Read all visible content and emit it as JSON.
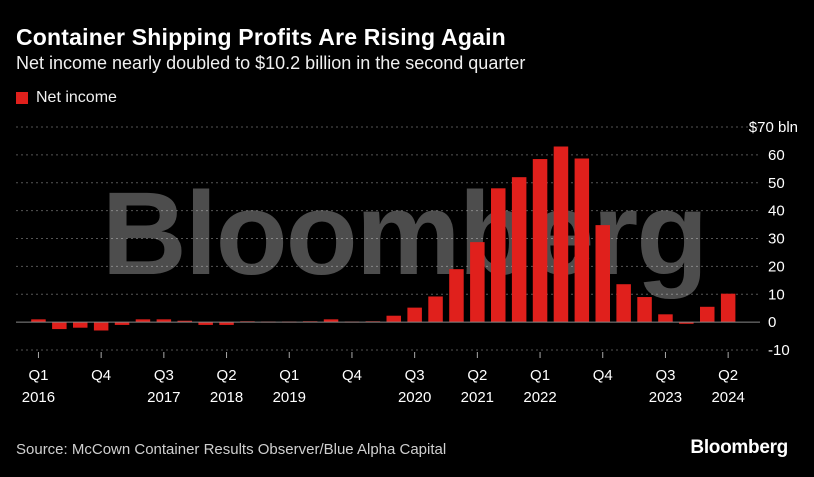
{
  "title": "Container Shipping Profits Are Rising Again",
  "subtitle": "Net income nearly doubled to $10.2 billion in the second quarter",
  "source": "Source: McCown Container Results Observer/Blue Alpha Capital",
  "brand": "Bloomberg",
  "watermark": "Bloomberg",
  "colors": {
    "bar": "#e0201c",
    "grid": "#555555",
    "zero_line": "#888888",
    "text": "#ffffff",
    "background": "#000000"
  },
  "chart_data": {
    "type": "bar",
    "series": [
      {
        "name": "Net income",
        "values": [
          1.0,
          -2.5,
          -2.0,
          -3.0,
          -1.0,
          1.0,
          1.0,
          0.5,
          -1.0,
          -1.0,
          0.3,
          0.2,
          0.2,
          0.3,
          1.0,
          0.2,
          0.3,
          2.3,
          5.2,
          9.2,
          19.0,
          28.7,
          48.0,
          52.0,
          58.5,
          63.0,
          58.7,
          34.8,
          13.6,
          9.0,
          2.8,
          -0.6,
          5.5,
          10.2
        ]
      }
    ],
    "categories": [
      "Q1 2016",
      "Q2 2016",
      "Q3 2016",
      "Q4 2016",
      "Q1 2017",
      "Q2 2017",
      "Q3 2017",
      "Q4 2017",
      "Q1 2018",
      "Q2 2018",
      "Q3 2018",
      "Q4 2018",
      "Q1 2019",
      "Q2 2019",
      "Q3 2019",
      "Q4 2019",
      "Q1 2020",
      "Q2 2020",
      "Q3 2020",
      "Q4 2020",
      "Q1 2021",
      "Q2 2021",
      "Q3 2021",
      "Q4 2021",
      "Q1 2022",
      "Q2 2022",
      "Q3 2022",
      "Q4 2022",
      "Q1 2023",
      "Q2 2023",
      "Q3 2023",
      "Q4 2023",
      "Q1 2024",
      "Q2 2024"
    ],
    "x_ticks": [
      {
        "index": 0,
        "quarter": "Q1",
        "year": "2016"
      },
      {
        "index": 3,
        "quarter": "Q4",
        "year": ""
      },
      {
        "index": 6,
        "quarter": "Q3",
        "year": "2017"
      },
      {
        "index": 9,
        "quarter": "Q2",
        "year": "2018"
      },
      {
        "index": 12,
        "quarter": "Q1",
        "year": "2019"
      },
      {
        "index": 15,
        "quarter": "Q4",
        "year": ""
      },
      {
        "index": 18,
        "quarter": "Q3",
        "year": "2020"
      },
      {
        "index": 21,
        "quarter": "Q2",
        "year": "2021"
      },
      {
        "index": 24,
        "quarter": "Q1",
        "year": "2022"
      },
      {
        "index": 27,
        "quarter": "Q4",
        "year": ""
      },
      {
        "index": 30,
        "quarter": "Q3",
        "year": "2023"
      },
      {
        "index": 33,
        "quarter": "Q2",
        "year": "2024"
      }
    ],
    "y_ticks": [
      {
        "value": 70,
        "label": "$70 bln"
      },
      {
        "value": 60,
        "label": "60"
      },
      {
        "value": 50,
        "label": "50"
      },
      {
        "value": 40,
        "label": "40"
      },
      {
        "value": 30,
        "label": "30"
      },
      {
        "value": 20,
        "label": "20"
      },
      {
        "value": 10,
        "label": "10"
      },
      {
        "value": 0,
        "label": "0"
      },
      {
        "value": -10,
        "label": "-10"
      }
    ],
    "ylim": [
      -10,
      70
    ],
    "y_axis_position": "right",
    "grid": true,
    "legend_position": "top-left"
  }
}
